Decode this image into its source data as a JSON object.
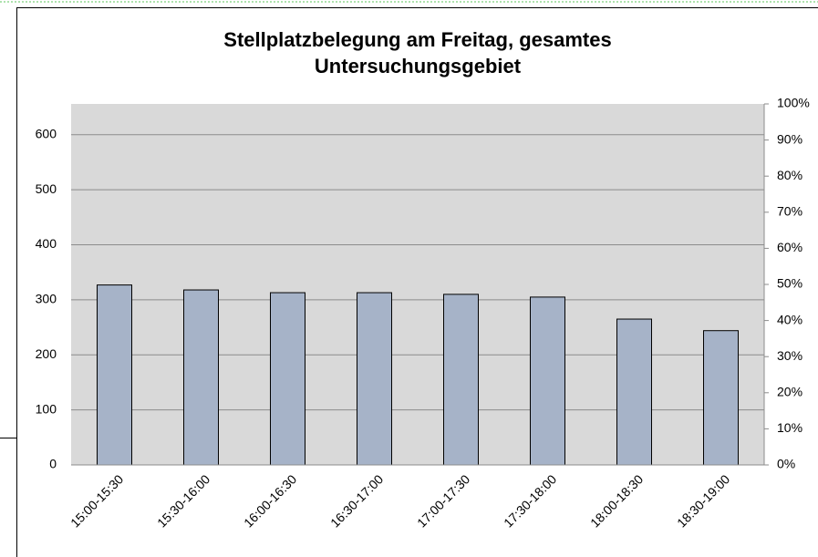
{
  "chart_data": {
    "type": "bar",
    "title": [
      "Stellplatzbelegung am Freitag, gesamtes",
      "Untersuchungsgebiet"
    ],
    "categories": [
      "15:00-15:30",
      "15:30-16:00",
      "16:00-16:30",
      "16:30-17:00",
      "17:00-17:30",
      "17:30-18:00",
      "18:00-18:30",
      "18:30-19:00"
    ],
    "values": [
      327,
      318,
      313,
      313,
      310,
      305,
      265,
      244
    ],
    "color": "#a6b3c8",
    "ylim": [
      0,
      656
    ],
    "yticks": [
      0,
      100,
      200,
      300,
      400,
      500,
      600
    ],
    "y2lim": [
      0,
      100
    ],
    "y2ticks": [
      {
        "value": 0,
        "label": "0%"
      },
      {
        "value": 10,
        "label": "10%"
      },
      {
        "value": 20,
        "label": "20%"
      },
      {
        "value": 30,
        "label": "30%"
      },
      {
        "value": 40,
        "label": "40%"
      },
      {
        "value": 50,
        "label": "50%"
      },
      {
        "value": 60,
        "label": "60%"
      },
      {
        "value": 70,
        "label": "70%"
      },
      {
        "value": 80,
        "label": "80%"
      },
      {
        "value": 90,
        "label": "90%"
      },
      {
        "value": 100,
        "label": "100%"
      }
    ],
    "grid": true
  }
}
